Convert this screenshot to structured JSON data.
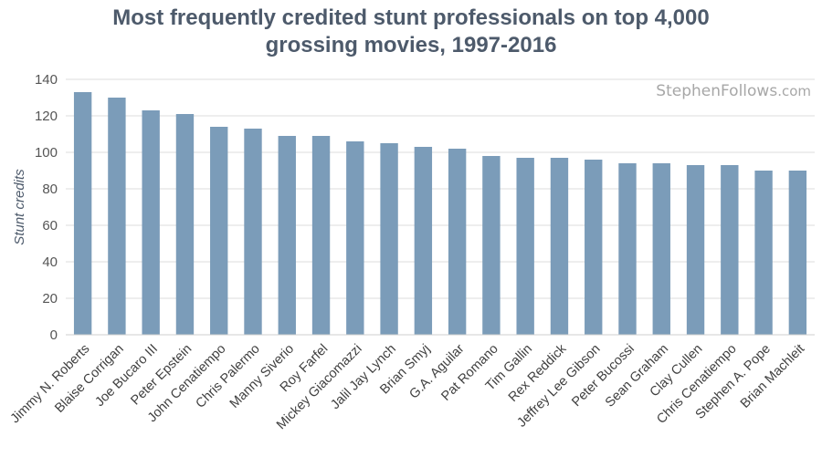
{
  "chart_data": {
    "type": "bar",
    "title_line1": "Most frequently credited stunt professionals on top 4,000",
    "title_line2": "grossing movies, 1997-2016",
    "ylabel": "Stunt credits",
    "xlabel": "",
    "ylim": [
      0,
      140
    ],
    "yticks": [
      0,
      20,
      40,
      60,
      80,
      100,
      120,
      140
    ],
    "grid": true,
    "bar_color": "#7b9cb9",
    "categories": [
      "Jimmy N. Roberts",
      "Blaise Corrigan",
      "Joe Bucaro III",
      "Peter Epstein",
      "John Cenatiempo",
      "Chris Palermo",
      "Manny Siverio",
      "Roy Farfel",
      "Mickey Giacomazzi",
      "Jalil Jay Lynch",
      "Brian Smyj",
      "G.A. Aguilar",
      "Pat Romano",
      "Tim Gallin",
      "Rex Reddick",
      "Jeffrey Lee Gibson",
      "Peter Bucossi",
      "Sean Graham",
      "Clay Cullen",
      "Chris Cenatiempo",
      "Stephen A. Pope",
      "Brian Machleit"
    ],
    "values": [
      133,
      130,
      123,
      121,
      114,
      113,
      109,
      109,
      106,
      105,
      103,
      102,
      98,
      97,
      97,
      96,
      94,
      94,
      93,
      93,
      90,
      90
    ]
  },
  "watermark": {
    "name": "StephenFollows",
    "domain": ".com"
  }
}
